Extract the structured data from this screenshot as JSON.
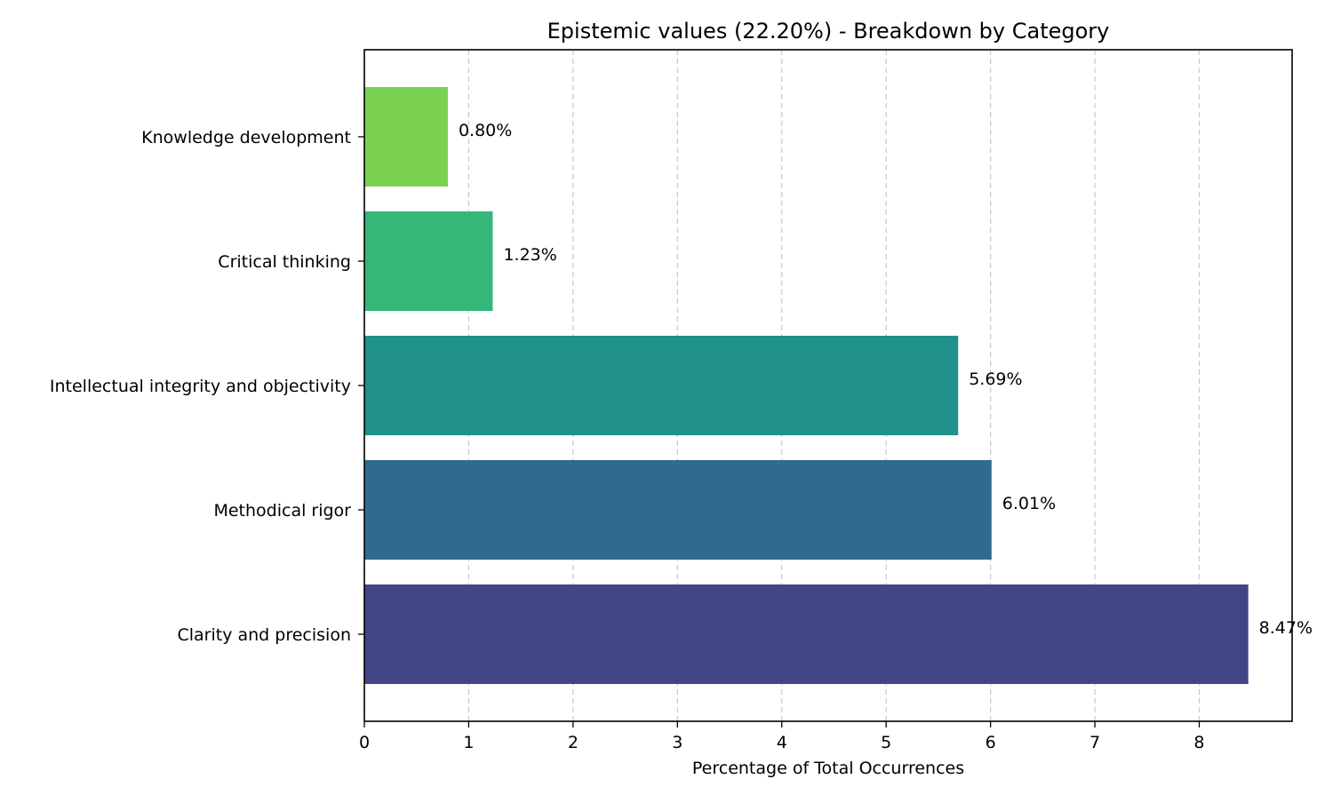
{
  "chart_data": {
    "type": "bar",
    "orientation": "horizontal",
    "title": "Epistemic values (22.20%) - Breakdown by Category",
    "xlabel": "Percentage of Total Occurrences",
    "ylabel": "",
    "categories": [
      "Clarity and precision",
      "Methodical rigor",
      "Intellectual integrity and objectivity",
      "Critical thinking",
      "Knowledge development"
    ],
    "values": [
      8.47,
      6.01,
      5.69,
      1.23,
      0.8
    ],
    "value_labels": [
      "8.47%",
      "6.01%",
      "5.69%",
      "1.23%",
      "0.80%"
    ],
    "colors": [
      "#424686",
      "#306a8e",
      "#21918c",
      "#35b779",
      "#7ad151"
    ],
    "xlim": [
      0,
      8.89
    ],
    "xticks": [
      0,
      1,
      2,
      3,
      4,
      5,
      6,
      7,
      8
    ],
    "grid": "x, dashed, light gray",
    "legend": "none"
  }
}
